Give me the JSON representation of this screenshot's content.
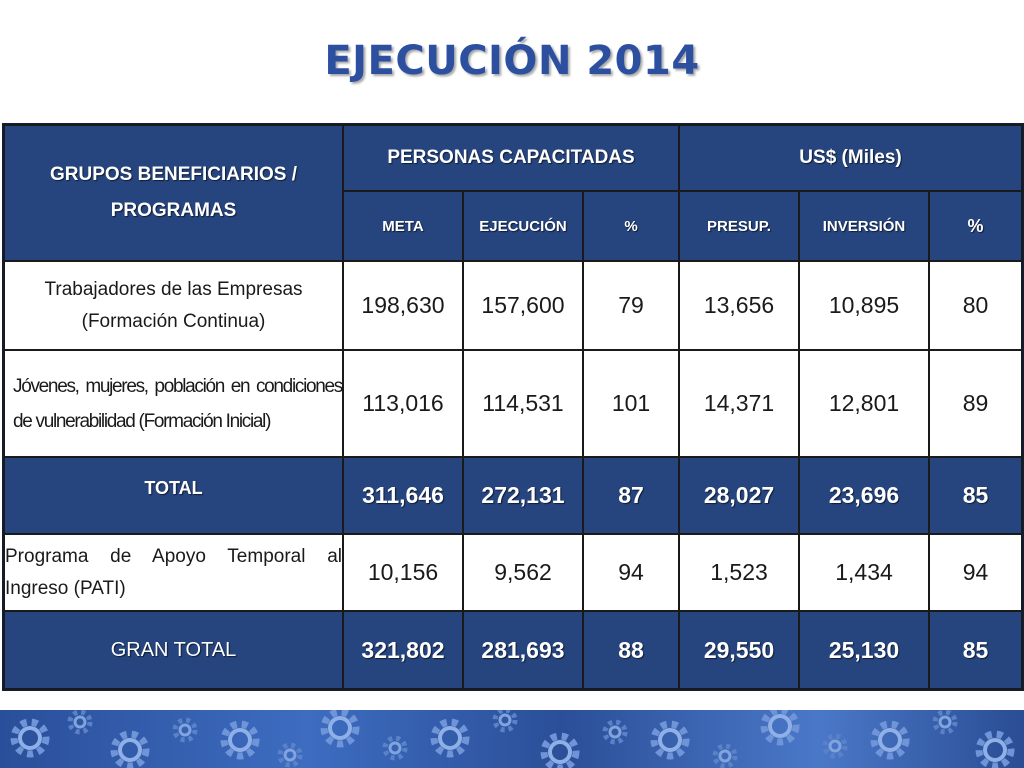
{
  "title": "EJECUCIÓN 2014",
  "header": {
    "group": "GRUPOS BENEFICIARIOS / PROGRAMAS",
    "persons": "PERSONAS CAPACITADAS",
    "usd": "US$ (Miles)",
    "sub": [
      "META",
      "EJECUCIÓN",
      "%",
      "PRESUP.",
      "INVERSIÓN",
      "%"
    ]
  },
  "rows": [
    {
      "label": "Trabajadores de las Empresas (Formación Continua)",
      "values": [
        "198,630",
        "157,600",
        "79",
        "13,656",
        "10,895",
        "80"
      ]
    },
    {
      "label": "Jóvenes, mujeres, población en condiciones de vulnerabilidad (Formación Inicial)",
      "values": [
        "113,016",
        "114,531",
        "101",
        "14,371",
        "12,801",
        "89"
      ]
    },
    {
      "label": "TOTAL",
      "values": [
        "311,646",
        "272,131",
        "87",
        "28,027",
        "23,696",
        "85"
      ]
    },
    {
      "label": "Programa de Apoyo Temporal al Ingreso (PATI)",
      "values": [
        "10,156",
        "9,562",
        "94",
        "1,523",
        "1,434",
        "94"
      ]
    },
    {
      "label": "GRAN TOTAL",
      "values": [
        "321,802",
        "281,693",
        "88",
        "29,550",
        "25,130",
        "85"
      ]
    }
  ],
  "colors": {
    "title": "#2c4f9f",
    "header_bg": "#26457f",
    "footer": "#2f5aa8"
  },
  "icons": [
    "gear-icon"
  ]
}
